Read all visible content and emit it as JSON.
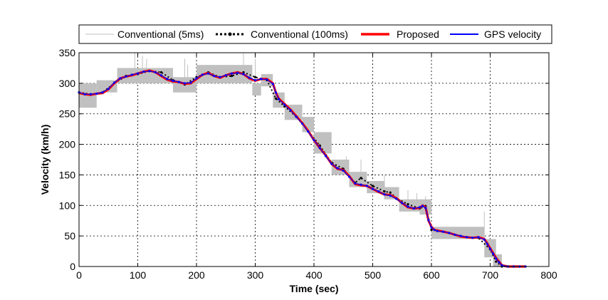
{
  "chart_data": {
    "type": "line",
    "xlabel": "Time (sec)",
    "ylabel": "Velocity (km/h)",
    "xlim": [
      0,
      800
    ],
    "ylim": [
      0,
      350
    ],
    "xticks": [
      0,
      100,
      200,
      300,
      400,
      500,
      600,
      700,
      800
    ],
    "yticks": [
      0,
      50,
      100,
      150,
      200,
      250,
      300,
      350
    ],
    "grid": true,
    "legend_position": "top",
    "series": [
      {
        "name": "Conventional (5ms)",
        "color": "#c0c0c0",
        "style": "thin-solid",
        "step_segments": [
          [
            0,
            30,
            260,
            300
          ],
          [
            30,
            65,
            285,
            305
          ],
          [
            65,
            160,
            300,
            325
          ],
          [
            160,
            200,
            285,
            310
          ],
          [
            200,
            295,
            300,
            330
          ],
          [
            295,
            310,
            280,
            300
          ],
          [
            310,
            330,
            295,
            315
          ],
          [
            330,
            350,
            260,
            285
          ],
          [
            350,
            380,
            240,
            265
          ],
          [
            380,
            400,
            220,
            245
          ],
          [
            400,
            430,
            185,
            220
          ],
          [
            430,
            460,
            150,
            175
          ],
          [
            460,
            490,
            130,
            155
          ],
          [
            490,
            520,
            120,
            140
          ],
          [
            520,
            545,
            110,
            130
          ],
          [
            545,
            580,
            90,
            110
          ],
          [
            580,
            600,
            85,
            110
          ],
          [
            600,
            690,
            45,
            65
          ],
          [
            690,
            710,
            15,
            45
          ],
          [
            705,
            720,
            0,
            20
          ]
        ],
        "spikes": [
          [
            95,
            300,
            350
          ],
          [
            108,
            305,
            345
          ],
          [
            115,
            300,
            340
          ],
          [
            180,
            290,
            340
          ],
          [
            185,
            285,
            330
          ],
          [
            280,
            300,
            350
          ],
          [
            300,
            300,
            340
          ],
          [
            455,
            150,
            180
          ],
          [
            480,
            130,
            175
          ],
          [
            520,
            110,
            150
          ],
          [
            560,
            90,
            125
          ],
          [
            575,
            90,
            120
          ],
          [
            590,
            90,
            115
          ],
          [
            690,
            45,
            90
          ]
        ]
      },
      {
        "name": "Conventional (100ms)",
        "color": "#000000",
        "style": "dotted-markers",
        "x": [
          0,
          20,
          40,
          60,
          80,
          100,
          120,
          140,
          160,
          180,
          200,
          220,
          240,
          260,
          280,
          300,
          320,
          335,
          350,
          370,
          390,
          410,
          430,
          450,
          470,
          480,
          500,
          520,
          530,
          540,
          560,
          580,
          590,
          600,
          620,
          640,
          660,
          680,
          700,
          710,
          720,
          740,
          760
        ],
        "y": [
          285,
          282,
          285,
          300,
          312,
          315,
          320,
          318,
          305,
          298,
          310,
          318,
          310,
          312,
          318,
          310,
          305,
          275,
          262,
          245,
          222,
          198,
          170,
          160,
          137,
          145,
          132,
          123,
          121,
          112,
          102,
          95,
          99,
          60,
          57,
          52,
          48,
          47,
          28,
          8,
          0,
          0,
          0
        ]
      },
      {
        "name": "Proposed",
        "color": "#ff0000",
        "style": "thick-solid",
        "x": [
          0,
          10,
          20,
          30,
          40,
          50,
          60,
          70,
          80,
          90,
          100,
          110,
          120,
          130,
          140,
          150,
          160,
          170,
          180,
          190,
          200,
          210,
          220,
          230,
          240,
          250,
          260,
          270,
          280,
          290,
          300,
          310,
          320,
          330,
          335,
          340,
          350,
          360,
          370,
          380,
          390,
          400,
          410,
          420,
          430,
          440,
          450,
          460,
          470,
          480,
          490,
          500,
          510,
          520,
          530,
          540,
          550,
          560,
          570,
          580,
          585,
          590,
          595,
          600,
          605,
          610,
          620,
          630,
          640,
          650,
          660,
          670,
          680,
          690,
          695,
          700,
          705,
          710,
          715,
          720,
          730,
          740,
          750,
          760
        ],
        "y": [
          284,
          282,
          281,
          283,
          284,
          290,
          300,
          308,
          311,
          313,
          316,
          319,
          321,
          318,
          312,
          306,
          303,
          302,
          299,
          300,
          307,
          314,
          317,
          312,
          309,
          313,
          316,
          318,
          315,
          308,
          304,
          307,
          307,
          300,
          285,
          275,
          266,
          257,
          246,
          235,
          222,
          207,
          194,
          182,
          168,
          160,
          158,
          148,
          135,
          133,
          132,
          127,
          122,
          118,
          117,
          112,
          104,
          97,
          95,
          96,
          100,
          97,
          75,
          65,
          60,
          59,
          57,
          55,
          52,
          49,
          48,
          47,
          48,
          45,
          38,
          30,
          22,
          14,
          8,
          2,
          0,
          0,
          0,
          0
        ]
      },
      {
        "name": "GPS velocity",
        "color": "#0000ff",
        "style": "solid-markers",
        "x": [
          0,
          10,
          20,
          30,
          40,
          50,
          60,
          70,
          80,
          90,
          100,
          110,
          120,
          130,
          140,
          150,
          160,
          170,
          180,
          190,
          200,
          210,
          220,
          230,
          240,
          250,
          260,
          270,
          280,
          290,
          300,
          310,
          320,
          330,
          335,
          340,
          350,
          360,
          370,
          380,
          390,
          400,
          410,
          420,
          430,
          440,
          450,
          460,
          470,
          480,
          490,
          500,
          510,
          520,
          530,
          540,
          550,
          560,
          570,
          580,
          585,
          590,
          595,
          600,
          605,
          610,
          620,
          630,
          640,
          650,
          660,
          670,
          680,
          690,
          695,
          700,
          705,
          710,
          715,
          720,
          730,
          740,
          750,
          760
        ],
        "y": [
          285,
          282,
          282,
          283,
          285,
          291,
          301,
          308,
          311,
          314,
          316,
          319,
          320,
          318,
          313,
          307,
          304,
          302,
          300,
          301,
          308,
          314,
          316,
          312,
          310,
          313,
          316,
          317,
          315,
          309,
          305,
          307,
          306,
          299,
          285,
          274,
          265,
          256,
          245,
          234,
          221,
          207,
          194,
          181,
          168,
          161,
          157,
          147,
          136,
          134,
          132,
          127,
          123,
          118,
          116,
          111,
          104,
          98,
          95,
          97,
          99,
          96,
          76,
          64,
          60,
          58,
          57,
          55,
          52,
          50,
          48,
          47,
          48,
          44,
          37,
          29,
          21,
          13,
          7,
          2,
          0,
          0,
          0,
          0
        ]
      }
    ]
  }
}
